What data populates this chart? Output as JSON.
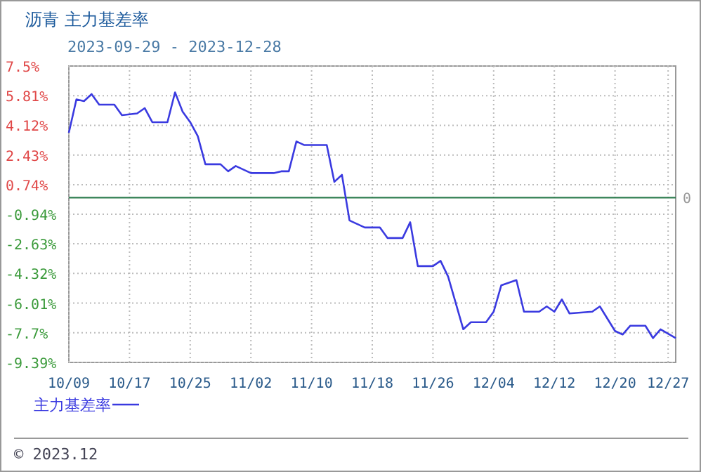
{
  "chart_data": {
    "type": "line",
    "title": "沥青 主力基差率",
    "subtitle": "2023-09-29 - 2023-12-28",
    "annotations": [
      "© 2023.12"
    ],
    "x": [
      "2023-10-09",
      "2023-10-10",
      "2023-10-11",
      "2023-10-12",
      "2023-10-13",
      "2023-10-15",
      "2023-10-16",
      "2023-10-18",
      "2023-10-19",
      "2023-10-20",
      "2023-10-22",
      "2023-10-23",
      "2023-10-24",
      "2023-10-25",
      "2023-10-26",
      "2023-10-27",
      "2023-10-29",
      "2023-10-30",
      "2023-10-31",
      "2023-11-02",
      "2023-11-05",
      "2023-11-06",
      "2023-11-07",
      "2023-11-08",
      "2023-11-09",
      "2023-11-12",
      "2023-11-13",
      "2023-11-14",
      "2023-11-15",
      "2023-11-17",
      "2023-11-19",
      "2023-11-20",
      "2023-11-22",
      "2023-11-23",
      "2023-11-24",
      "2023-11-26",
      "2023-11-27",
      "2023-11-28",
      "2023-11-30",
      "2023-12-01",
      "2023-12-03",
      "2023-12-04",
      "2023-12-05",
      "2023-12-07",
      "2023-12-08",
      "2023-12-10",
      "2023-12-11",
      "2023-12-12",
      "2023-12-13",
      "2023-12-14",
      "2023-12-17",
      "2023-12-18",
      "2023-12-20",
      "2023-12-21",
      "2023-12-22",
      "2023-12-24",
      "2023-12-25",
      "2023-12-26",
      "2023-12-28"
    ],
    "series": [
      {
        "name": "主力基差率",
        "color": "#3a3ae0",
        "values": [
          3.7,
          5.6,
          5.5,
          5.9,
          5.3,
          5.3,
          4.7,
          4.8,
          5.1,
          4.3,
          4.3,
          6.0,
          4.9,
          4.3,
          3.5,
          1.9,
          1.9,
          1.5,
          1.8,
          1.4,
          1.4,
          1.5,
          1.5,
          3.2,
          3.0,
          3.0,
          0.9,
          1.3,
          -1.3,
          -1.7,
          -1.7,
          -2.3,
          -2.3,
          -1.4,
          -3.9,
          -3.9,
          -3.6,
          -4.5,
          -7.5,
          -7.1,
          -7.1,
          -6.5,
          -5.0,
          -4.7,
          -6.5,
          -6.5,
          -6.2,
          -6.5,
          -5.8,
          -6.6,
          -6.5,
          -6.2,
          -7.6,
          -7.8,
          -7.3,
          -7.3,
          -8.0,
          -7.5,
          -8.0
        ]
      }
    ],
    "xlim": [
      "2023-10-09",
      "2023-12-28"
    ],
    "xticks": [
      {
        "value": "2023-10-09",
        "label": "10/09"
      },
      {
        "value": "2023-10-17",
        "label": "10/17"
      },
      {
        "value": "2023-10-25",
        "label": "10/25"
      },
      {
        "value": "2023-11-02",
        "label": "11/02"
      },
      {
        "value": "2023-11-10",
        "label": "11/10"
      },
      {
        "value": "2023-11-18",
        "label": "11/18"
      },
      {
        "value": "2023-11-26",
        "label": "11/26"
      },
      {
        "value": "2023-12-04",
        "label": "12/04"
      },
      {
        "value": "2023-12-12",
        "label": "12/12"
      },
      {
        "value": "2023-12-20",
        "label": "12/20"
      },
      {
        "value": "2023-12-27",
        "label": "12/27"
      }
    ],
    "ylim": [
      -9.39,
      7.5
    ],
    "yticks": [
      {
        "value": 7.5,
        "label": "7.5%"
      },
      {
        "value": 5.81,
        "label": "5.81%"
      },
      {
        "value": 4.12,
        "label": "4.12%"
      },
      {
        "value": 2.43,
        "label": "2.43%"
      },
      {
        "value": 0.74,
        "label": "0.74%"
      },
      {
        "value": -0.94,
        "label": "-0.94%"
      },
      {
        "value": -2.63,
        "label": "-2.63%"
      },
      {
        "value": -4.32,
        "label": "-4.32%"
      },
      {
        "value": -6.01,
        "label": "-6.01%"
      },
      {
        "value": -7.7,
        "label": "-7.7%"
      },
      {
        "value": -9.39,
        "label": "-9.39%"
      }
    ],
    "ref_lines": [
      {
        "axis": "y",
        "value": 0,
        "label": "0",
        "color": "#2e7d4f"
      }
    ],
    "grid": true,
    "legend": "bottom",
    "marker": "none",
    "line_style": "solid"
  }
}
